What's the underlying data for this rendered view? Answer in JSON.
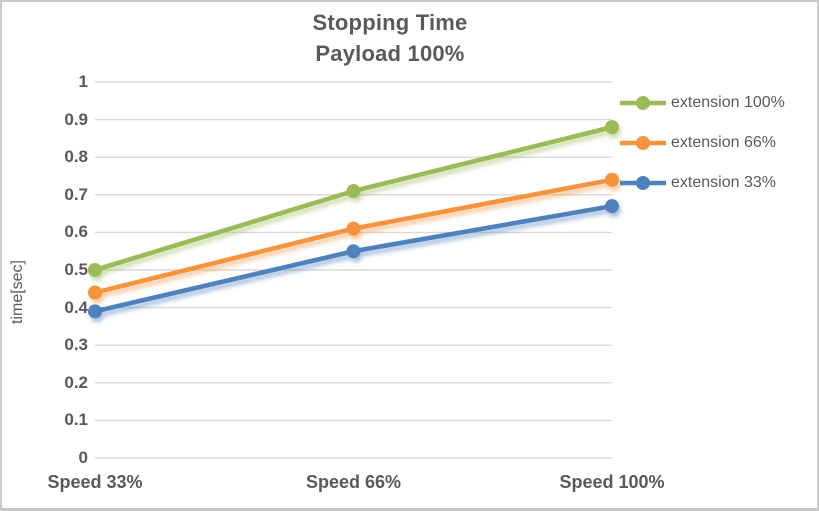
{
  "chart_data": {
    "type": "line",
    "title": "Stopping Time",
    "subtitle": "Payload 100%",
    "ylabel": "time[sec]",
    "xlabel": "",
    "categories": [
      "Speed 33%",
      "Speed 66%",
      "Speed 100%"
    ],
    "series": [
      {
        "name": "extension 100%",
        "values": [
          0.5,
          0.71,
          0.88
        ],
        "color": "#9BBB59"
      },
      {
        "name": "extension 66%",
        "values": [
          0.44,
          0.61,
          0.74
        ],
        "color": "#F5933F"
      },
      {
        "name": "extension 33%",
        "values": [
          0.39,
          0.55,
          0.67
        ],
        "color": "#4F81BD"
      }
    ],
    "ylim": [
      0,
      1
    ],
    "ytick_labels": [
      "0",
      "0.1",
      "0.2",
      "0.3",
      "0.4",
      "0.5",
      "0.6",
      "0.7",
      "0.8",
      "0.9",
      "1"
    ],
    "grid": true,
    "legend_position": "right",
    "marker": "circle",
    "colors": {
      "text": "#595959",
      "gridline": "#D9D9D9",
      "frame_border": "#CCCACA",
      "background": "#FFFFFF"
    }
  }
}
